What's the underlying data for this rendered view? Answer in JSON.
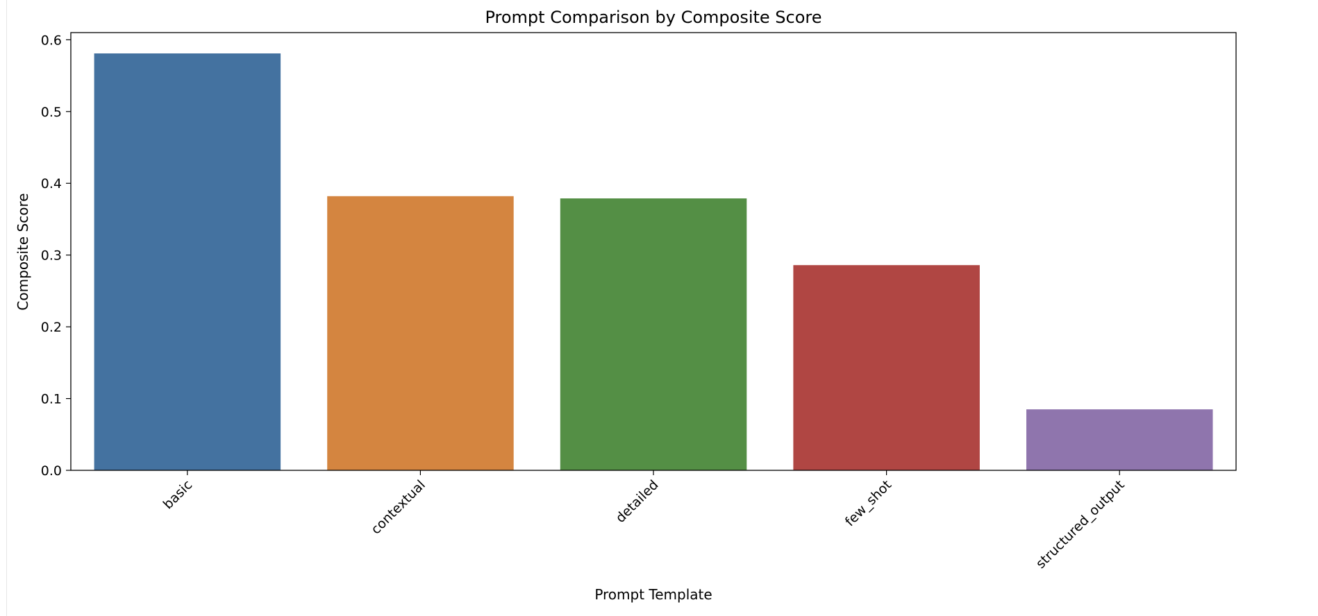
{
  "chart_data": {
    "type": "bar",
    "title": "Prompt Comparison by Composite Score",
    "xlabel": "Prompt Template",
    "ylabel": "Composite Score",
    "categories": [
      "basic",
      "contextual",
      "detailed",
      "few_shot",
      "structured_output"
    ],
    "values": [
      0.581,
      0.382,
      0.379,
      0.286,
      0.085
    ],
    "colors": [
      "#4472a0",
      "#d48540",
      "#548f45",
      "#b04643",
      "#8f75ad"
    ],
    "ylim": [
      0,
      0.61
    ],
    "yticks": [
      {
        "value": 0.0,
        "label": "0.0"
      },
      {
        "value": 0.1,
        "label": "0.1"
      },
      {
        "value": 0.2,
        "label": "0.2"
      },
      {
        "value": 0.3,
        "label": "0.3"
      },
      {
        "value": 0.4,
        "label": "0.4"
      },
      {
        "value": 0.5,
        "label": "0.5"
      },
      {
        "value": 0.6,
        "label": "0.6"
      }
    ],
    "grid": false,
    "legend": "none"
  }
}
